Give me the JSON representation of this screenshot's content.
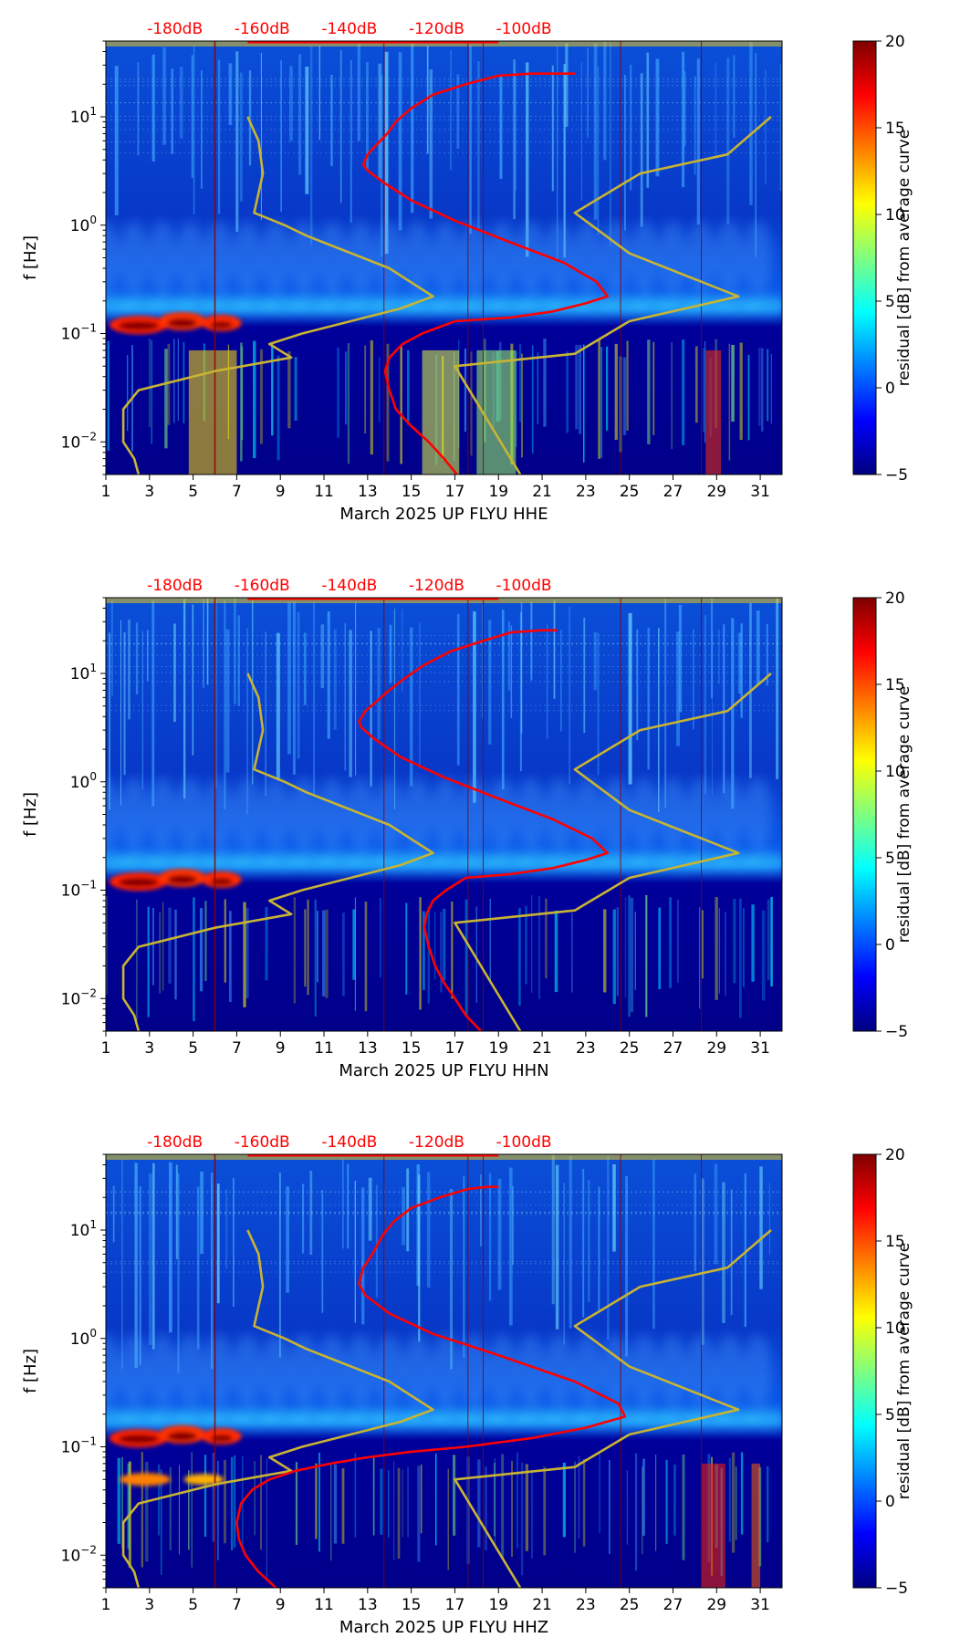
{
  "colorbar": {
    "label": "residual [dB] from average curve",
    "ticks": [
      20,
      15,
      10,
      5,
      0,
      -5
    ],
    "colormap": [
      "#00007f",
      "#0000ff",
      "#007fff",
      "#00ffff",
      "#7fff7f",
      "#ffff00",
      "#ff7f00",
      "#ff0000",
      "#7f0000"
    ]
  },
  "colors": {
    "db_labels": "#ff0000",
    "psd_curve": "#ff0000",
    "noise_model": "#c8b432",
    "vertical_lines": "#8b0000"
  },
  "chart_data": [
    {
      "type": "heatmap",
      "xlabel": "March 2025 UP FLYU  HHE",
      "ylabel": "f [Hz]",
      "ylog": true,
      "ylim": [
        0.005,
        50
      ],
      "xlim": [
        1,
        32
      ],
      "x_ticks": [
        "1",
        "3",
        "5",
        "7",
        "9",
        "11",
        "13",
        "15",
        "17",
        "19",
        "21",
        "23",
        "25",
        "27",
        "29",
        "31"
      ],
      "y_ticks": [
        "10^-2",
        "10^-1",
        "10^0",
        "10^1"
      ],
      "top_ticks": [
        "-180dB",
        "-160dB",
        "-140dB",
        "-120dB",
        "-100dB"
      ],
      "clim": [
        -5,
        20
      ],
      "series": [
        {
          "x": [
            17.1,
            16.5,
            15.8,
            15.0,
            14.3,
            14.0,
            13.8,
            14.0,
            14.6,
            15.5,
            17.0,
            19.5,
            21.5,
            23.0,
            24.0,
            23.5,
            22.0,
            19.5,
            17.0,
            15.0,
            13.7,
            13.0,
            12.8,
            13.0,
            13.4,
            13.9,
            14.3,
            15.0,
            16.0,
            17.5,
            19.0,
            20.5,
            22.5
          ],
          "y": [
            0.005,
            0.007,
            0.01,
            0.014,
            0.02,
            0.03,
            0.045,
            0.06,
            0.08,
            0.1,
            0.13,
            0.14,
            0.16,
            0.19,
            0.22,
            0.3,
            0.45,
            0.7,
            1.1,
            1.7,
            2.5,
            3.2,
            3.6,
            4.5,
            5.5,
            7,
            9,
            12,
            16,
            20,
            24,
            25,
            25
          ]
        }
      ],
      "noise_model": [
        {
          "x": [
            2.5,
            2.3,
            1.8,
            1.8,
            2.5,
            6.0,
            9.5,
            8.5,
            10.0,
            14.5,
            16.0,
            14.0,
            10.2,
            9.2,
            7.8,
            8.2,
            8.0,
            7.5
          ],
          "y": [
            0.005,
            0.007,
            0.01,
            0.02,
            0.03,
            0.045,
            0.06,
            0.08,
            0.1,
            0.17,
            0.22,
            0.4,
            0.8,
            1.0,
            1.3,
            3.0,
            6.0,
            10.0
          ]
        },
        {
          "x": [
            20.0,
            17.0,
            22.5,
            25.0,
            30.0,
            25.0,
            22.5,
            25.5,
            29.5,
            31.5
          ],
          "y": [
            0.005,
            0.05,
            0.065,
            0.13,
            0.22,
            0.55,
            1.3,
            3.0,
            4.5,
            10.0
          ]
        }
      ]
    },
    {
      "type": "heatmap",
      "xlabel": "March 2025 UP FLYU  HHN",
      "ylabel": "f [Hz]",
      "ylog": true,
      "ylim": [
        0.005,
        50
      ],
      "xlim": [
        1,
        32
      ],
      "x_ticks": [
        "1",
        "3",
        "5",
        "7",
        "9",
        "11",
        "13",
        "15",
        "17",
        "19",
        "21",
        "23",
        "25",
        "27",
        "29",
        "31"
      ],
      "y_ticks": [
        "10^-2",
        "10^-1",
        "10^0",
        "10^1"
      ],
      "top_ticks": [
        "-180dB",
        "-160dB",
        "-140dB",
        "-120dB",
        "-100dB"
      ],
      "clim": [
        -5,
        20
      ],
      "series": [
        {
          "x": [
            18.2,
            17.5,
            17.0,
            16.5,
            16.1,
            15.8,
            15.6,
            15.7,
            16.0,
            16.6,
            17.5,
            19.5,
            21.5,
            23.0,
            24.0,
            23.3,
            21.5,
            19.0,
            16.5,
            14.5,
            13.3,
            12.7,
            12.6,
            12.9,
            13.4,
            14.0,
            14.7,
            15.6,
            16.8,
            18.3,
            19.6,
            21.0,
            21.7
          ],
          "y": [
            0.005,
            0.007,
            0.01,
            0.014,
            0.02,
            0.03,
            0.045,
            0.06,
            0.08,
            0.1,
            0.13,
            0.14,
            0.16,
            0.19,
            0.22,
            0.3,
            0.45,
            0.7,
            1.1,
            1.7,
            2.5,
            3.2,
            3.6,
            4.5,
            5.5,
            7,
            9,
            12,
            16,
            20,
            24,
            25,
            25
          ]
        }
      ],
      "noise_model": [
        {
          "x": [
            2.5,
            2.3,
            1.8,
            1.8,
            2.5,
            6.0,
            9.5,
            8.5,
            10.0,
            14.5,
            16.0,
            14.0,
            10.2,
            9.2,
            7.8,
            8.2,
            8.0,
            7.5
          ],
          "y": [
            0.005,
            0.007,
            0.01,
            0.02,
            0.03,
            0.045,
            0.06,
            0.08,
            0.1,
            0.17,
            0.22,
            0.4,
            0.8,
            1.0,
            1.3,
            3.0,
            6.0,
            10.0
          ]
        },
        {
          "x": [
            20.0,
            17.0,
            22.5,
            25.0,
            30.0,
            25.0,
            22.5,
            25.5,
            29.5,
            31.5
          ],
          "y": [
            0.005,
            0.05,
            0.065,
            0.13,
            0.22,
            0.55,
            1.3,
            3.0,
            4.5,
            10.0
          ]
        }
      ]
    },
    {
      "type": "heatmap",
      "xlabel": "March 2025 UP FLYU  HHZ",
      "ylabel": "f [Hz]",
      "ylog": true,
      "ylim": [
        0.005,
        50
      ],
      "xlim": [
        1,
        32
      ],
      "x_ticks": [
        "1",
        "3",
        "5",
        "7",
        "9",
        "11",
        "13",
        "15",
        "17",
        "19",
        "21",
        "23",
        "25",
        "27",
        "29",
        "31"
      ],
      "y_ticks": [
        "10^-2",
        "10^-1",
        "10^0",
        "10^1"
      ],
      "top_ticks": [
        "-180dB",
        "-160dB",
        "-140dB",
        "-120dB",
        "-100dB"
      ],
      "clim": [
        -5,
        20
      ],
      "series": [
        {
          "x": [
            8.8,
            8.0,
            7.4,
            7.1,
            7.0,
            7.2,
            7.7,
            8.5,
            9.7,
            11.3,
            13.0,
            15.0,
            17.5,
            20.5,
            23.0,
            24.8,
            24.5,
            22.5,
            19.0,
            16.0,
            14.0,
            12.9,
            12.6,
            12.8,
            13.1,
            13.4,
            13.7,
            14.2,
            15.0,
            16.3,
            17.6,
            18.5,
            19.0
          ],
          "y": [
            0.005,
            0.007,
            0.01,
            0.014,
            0.02,
            0.03,
            0.04,
            0.05,
            0.06,
            0.07,
            0.08,
            0.09,
            0.1,
            0.12,
            0.15,
            0.19,
            0.25,
            0.4,
            0.7,
            1.1,
            1.7,
            2.5,
            3.2,
            4.5,
            5.5,
            7,
            9,
            12,
            16,
            20,
            24,
            25,
            25
          ]
        }
      ],
      "noise_model": [
        {
          "x": [
            2.5,
            2.3,
            1.8,
            1.8,
            2.5,
            6.0,
            9.5,
            8.5,
            10.0,
            14.5,
            16.0,
            14.0,
            10.2,
            9.2,
            7.8,
            8.2,
            8.0,
            7.5
          ],
          "y": [
            0.005,
            0.007,
            0.01,
            0.02,
            0.03,
            0.045,
            0.06,
            0.08,
            0.1,
            0.17,
            0.22,
            0.4,
            0.8,
            1.0,
            1.3,
            3.0,
            6.0,
            10.0
          ]
        },
        {
          "x": [
            20.0,
            17.0,
            22.5,
            25.0,
            30.0,
            25.0,
            22.5,
            25.5,
            29.5,
            31.5
          ],
          "y": [
            0.005,
            0.05,
            0.065,
            0.13,
            0.22,
            0.55,
            1.3,
            3.0,
            4.5,
            10.0
          ]
        }
      ]
    }
  ]
}
